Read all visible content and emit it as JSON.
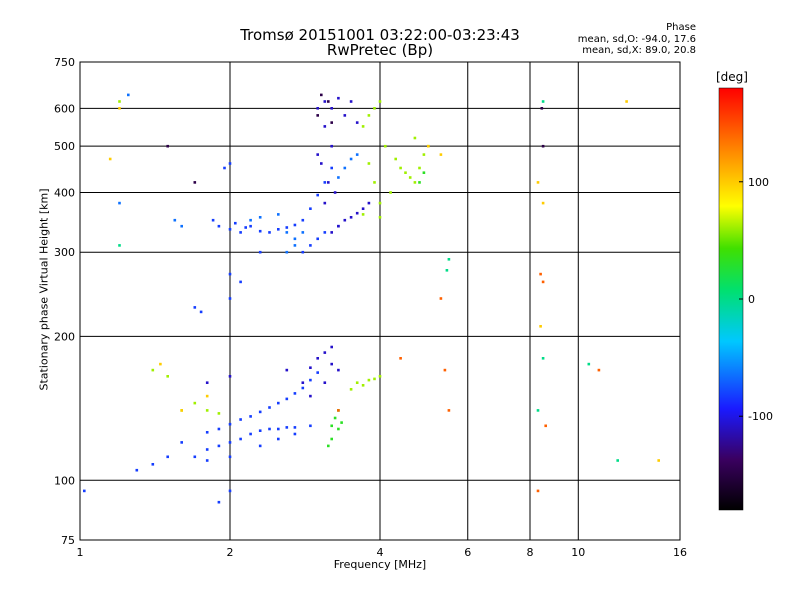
{
  "header": {
    "title": "Tromsø 20151001 03:22:00-03:23:43",
    "subtitle": "RwPretec (Bp)",
    "phase_title": "Phase",
    "phase_stats_o": "mean, sd,O:  -94.0, 17.6",
    "phase_stats_x": "mean, sd,X:  89.0, 20.8"
  },
  "chart_data": {
    "type": "scatter",
    "xlabel": "Frequency [MHz]",
    "ylabel": "Stationary phase Virtual Height [km]",
    "xscale": "log",
    "yscale": "log",
    "xlim": [
      1,
      16
    ],
    "ylim": [
      75,
      750
    ],
    "xticks": [
      1,
      2,
      4,
      6,
      8,
      10,
      16
    ],
    "yticks": [
      75,
      100,
      200,
      300,
      400,
      500,
      600,
      750
    ],
    "grid": true,
    "colorbar": {
      "label": "[deg]",
      "ticks": [
        100,
        0,
        -100
      ]
    },
    "series": [
      {
        "phase": -100,
        "points": [
          [
            1.7,
            112
          ],
          [
            1.8,
            116
          ],
          [
            1.9,
            118
          ],
          [
            2.0,
            120
          ],
          [
            2.1,
            122
          ],
          [
            2.2,
            125
          ],
          [
            2.3,
            127
          ],
          [
            2.4,
            128
          ],
          [
            2.5,
            128
          ],
          [
            2.6,
            129
          ],
          [
            2.7,
            129
          ],
          [
            1.8,
            126
          ],
          [
            1.9,
            128
          ],
          [
            2.0,
            131
          ],
          [
            2.1,
            134
          ],
          [
            2.2,
            136
          ],
          [
            2.3,
            139
          ],
          [
            2.4,
            142
          ],
          [
            2.5,
            145
          ],
          [
            2.6,
            148
          ],
          [
            2.7,
            152
          ],
          [
            2.8,
            156
          ],
          [
            2.9,
            162
          ],
          [
            3.0,
            168
          ],
          [
            1.6,
            120
          ],
          [
            1.5,
            112
          ],
          [
            1.4,
            108
          ],
          [
            1.3,
            105
          ],
          [
            1.9,
            340
          ],
          [
            2.0,
            335
          ],
          [
            2.1,
            330
          ],
          [
            2.2,
            340
          ],
          [
            2.3,
            332
          ],
          [
            1.85,
            350
          ],
          [
            2.05,
            345
          ],
          [
            2.15,
            338
          ],
          [
            2.4,
            330
          ],
          [
            2.5,
            335
          ],
          [
            2.6,
            338
          ],
          [
            2.7,
            342
          ],
          [
            2.8,
            350
          ],
          [
            2.9,
            370
          ],
          [
            3.0,
            395
          ],
          [
            3.1,
            420
          ],
          [
            3.2,
            450
          ],
          [
            2.8,
            300
          ],
          [
            2.9,
            310
          ],
          [
            3.0,
            320
          ],
          [
            3.1,
            330
          ],
          [
            3.3,
            340
          ],
          [
            1.95,
            450
          ],
          [
            2.0,
            460
          ],
          [
            1.7,
            230
          ],
          [
            1.75,
            225
          ],
          [
            2.0,
            270
          ],
          [
            2.1,
            260
          ],
          [
            2.0,
            240
          ],
          [
            2.3,
            300
          ],
          [
            1.8,
            110
          ],
          [
            2.0,
            112
          ],
          [
            2.3,
            118
          ],
          [
            2.5,
            122
          ],
          [
            2.7,
            125
          ],
          [
            2.9,
            130
          ],
          [
            1.9,
            90
          ],
          [
            2.0,
            95
          ],
          [
            1.02,
            95
          ]
        ]
      },
      {
        "phase": -120,
        "points": [
          [
            3.0,
            600
          ],
          [
            3.1,
            620
          ],
          [
            3.2,
            600
          ],
          [
            3.1,
            550
          ],
          [
            3.2,
            500
          ],
          [
            3.05,
            460
          ],
          [
            3.15,
            420
          ],
          [
            3.25,
            400
          ],
          [
            3.0,
            480
          ],
          [
            3.1,
            380
          ],
          [
            3.2,
            330
          ],
          [
            3.3,
            340
          ],
          [
            3.4,
            350
          ],
          [
            3.5,
            355
          ],
          [
            3.6,
            362
          ],
          [
            3.7,
            370
          ],
          [
            3.8,
            380
          ],
          [
            3.3,
            630
          ],
          [
            3.5,
            620
          ],
          [
            3.4,
            580
          ],
          [
            3.6,
            560
          ],
          [
            3.0,
            180
          ],
          [
            3.1,
            185
          ],
          [
            3.2,
            190
          ],
          [
            3.3,
            170
          ],
          [
            3.1,
            160
          ],
          [
            3.2,
            175
          ],
          [
            2.9,
            172
          ],
          [
            2.8,
            160
          ],
          [
            2.9,
            150
          ],
          [
            1.8,
            160
          ],
          [
            2.0,
            165
          ],
          [
            2.6,
            170
          ]
        ]
      },
      {
        "phase": -85,
        "points": [
          [
            2.2,
            350
          ],
          [
            2.3,
            355
          ],
          [
            2.5,
            360
          ],
          [
            2.6,
            330
          ],
          [
            2.7,
            320
          ],
          [
            2.8,
            330
          ],
          [
            2.6,
            300
          ],
          [
            2.7,
            310
          ],
          [
            3.3,
            430
          ],
          [
            3.4,
            450
          ],
          [
            3.5,
            470
          ],
          [
            3.6,
            480
          ],
          [
            1.25,
            640
          ],
          [
            1.2,
            380
          ],
          [
            1.55,
            350
          ],
          [
            1.6,
            340
          ]
        ]
      },
      {
        "phase": 20,
        "points": [
          [
            3.2,
            130
          ],
          [
            3.25,
            135
          ],
          [
            3.3,
            128
          ],
          [
            3.35,
            132
          ],
          [
            3.2,
            122
          ],
          [
            3.15,
            118
          ],
          [
            3.3,
            140
          ],
          [
            4.8,
            420
          ],
          [
            4.9,
            440
          ]
        ]
      },
      {
        "phase": 60,
        "points": [
          [
            3.7,
            550
          ],
          [
            3.8,
            580
          ],
          [
            3.9,
            600
          ],
          [
            4.0,
            620
          ],
          [
            4.1,
            500
          ],
          [
            4.3,
            470
          ],
          [
            4.4,
            450
          ],
          [
            4.5,
            440
          ],
          [
            4.6,
            430
          ],
          [
            4.7,
            420
          ],
          [
            4.8,
            450
          ],
          [
            4.9,
            480
          ],
          [
            5.0,
            500
          ],
          [
            4.7,
            520
          ],
          [
            3.8,
            460
          ],
          [
            3.9,
            420
          ],
          [
            4.0,
            380
          ],
          [
            3.7,
            360
          ],
          [
            4.0,
            355
          ],
          [
            4.2,
            400
          ],
          [
            3.6,
            160
          ],
          [
            3.7,
            158
          ],
          [
            3.8,
            162
          ],
          [
            3.9,
            163
          ],
          [
            4.0,
            165
          ],
          [
            3.5,
            155
          ],
          [
            1.5,
            165
          ],
          [
            1.6,
            140
          ],
          [
            1.7,
            145
          ],
          [
            1.8,
            140
          ],
          [
            1.9,
            138
          ],
          [
            1.4,
            170
          ],
          [
            1.2,
            620
          ]
        ]
      },
      {
        "phase": 110,
        "points": [
          [
            1.2,
            600
          ],
          [
            1.15,
            470
          ],
          [
            1.6,
            140
          ],
          [
            1.8,
            150
          ],
          [
            5.3,
            480
          ],
          [
            5.0,
            500
          ],
          [
            8.3,
            420
          ],
          [
            8.5,
            380
          ],
          [
            8.4,
            210
          ],
          [
            14.5,
            110
          ],
          [
            12.5,
            620
          ],
          [
            1.45,
            175
          ]
        ]
      },
      {
        "phase": 150,
        "points": [
          [
            8.4,
            270
          ],
          [
            8.5,
            260
          ],
          [
            8.3,
            95
          ],
          [
            11,
            170
          ],
          [
            5.3,
            240
          ],
          [
            8.6,
            130
          ],
          [
            4.4,
            180
          ],
          [
            3.3,
            140
          ],
          [
            5.5,
            140
          ],
          [
            5.4,
            170
          ]
        ]
      },
      {
        "phase": -10,
        "points": [
          [
            8.5,
            180
          ],
          [
            8.3,
            140
          ],
          [
            1.2,
            310
          ],
          [
            5.5,
            290
          ],
          [
            5.45,
            275
          ],
          [
            8.5,
            620
          ],
          [
            10.5,
            175
          ],
          [
            12,
            110
          ]
        ]
      },
      {
        "phase": -150,
        "points": [
          [
            8.5,
            500
          ],
          [
            8.45,
            600
          ],
          [
            1.5,
            500
          ],
          [
            1.7,
            420
          ],
          [
            3.05,
            640
          ],
          [
            3.0,
            580
          ],
          [
            3.2,
            560
          ],
          [
            3.15,
            620
          ]
        ]
      }
    ]
  }
}
